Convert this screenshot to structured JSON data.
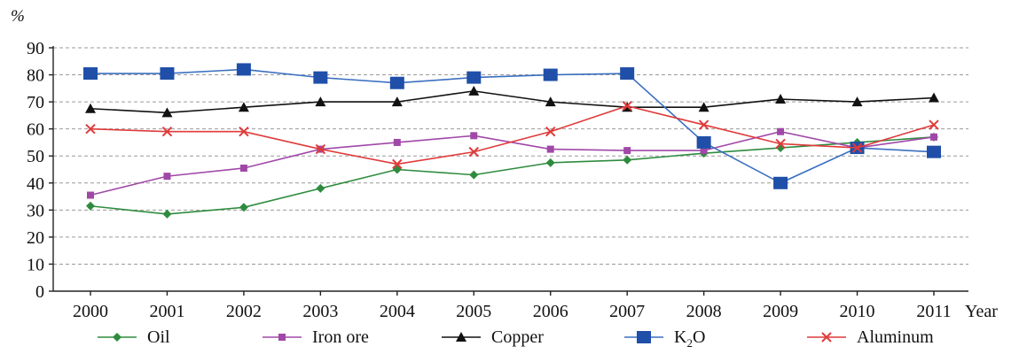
{
  "chart_data": {
    "type": "line",
    "ylabel": "%",
    "xlabel": "Year",
    "ylim": [
      0,
      90
    ],
    "yticks": [
      0,
      10,
      20,
      30,
      40,
      50,
      60,
      70,
      80,
      90
    ],
    "grid": true,
    "legend_position": "bottom",
    "categories": [
      "2000",
      "2001",
      "2002",
      "2003",
      "2004",
      "2005",
      "2006",
      "2007",
      "2008",
      "2009",
      "2010",
      "2011"
    ],
    "series": [
      {
        "name": "Oil",
        "marker": "diamond",
        "color": "#2e8b3e",
        "values": [
          31.5,
          28.5,
          31,
          38,
          45,
          43,
          47.5,
          48.5,
          51,
          53,
          55,
          57
        ]
      },
      {
        "name": "Iron ore",
        "marker": "square-small",
        "color": "#a048a8",
        "values": [
          35.5,
          42.5,
          45.5,
          52.5,
          55,
          57.5,
          52.5,
          52,
          52,
          59,
          53,
          57
        ]
      },
      {
        "name": "Copper",
        "marker": "triangle",
        "color": "#111111",
        "values": [
          67.5,
          66,
          68,
          70,
          70,
          74,
          70,
          68,
          68,
          71,
          70,
          71.5
        ]
      },
      {
        "name": "K",
        "name_sub": "2",
        "name_suffix": "O",
        "marker": "square-large",
        "color": "#3a6fc0",
        "marker_color": "#1f4fa8",
        "values": [
          80.5,
          80.5,
          82,
          79,
          77,
          79,
          80,
          80.5,
          55,
          40,
          53,
          51.5
        ]
      },
      {
        "name": "Aluminum",
        "marker": "x",
        "color": "#e03a3a",
        "values": [
          60,
          59,
          59,
          52.5,
          47,
          51.5,
          59,
          68.5,
          61.5,
          54.5,
          53,
          61.5
        ]
      }
    ]
  }
}
